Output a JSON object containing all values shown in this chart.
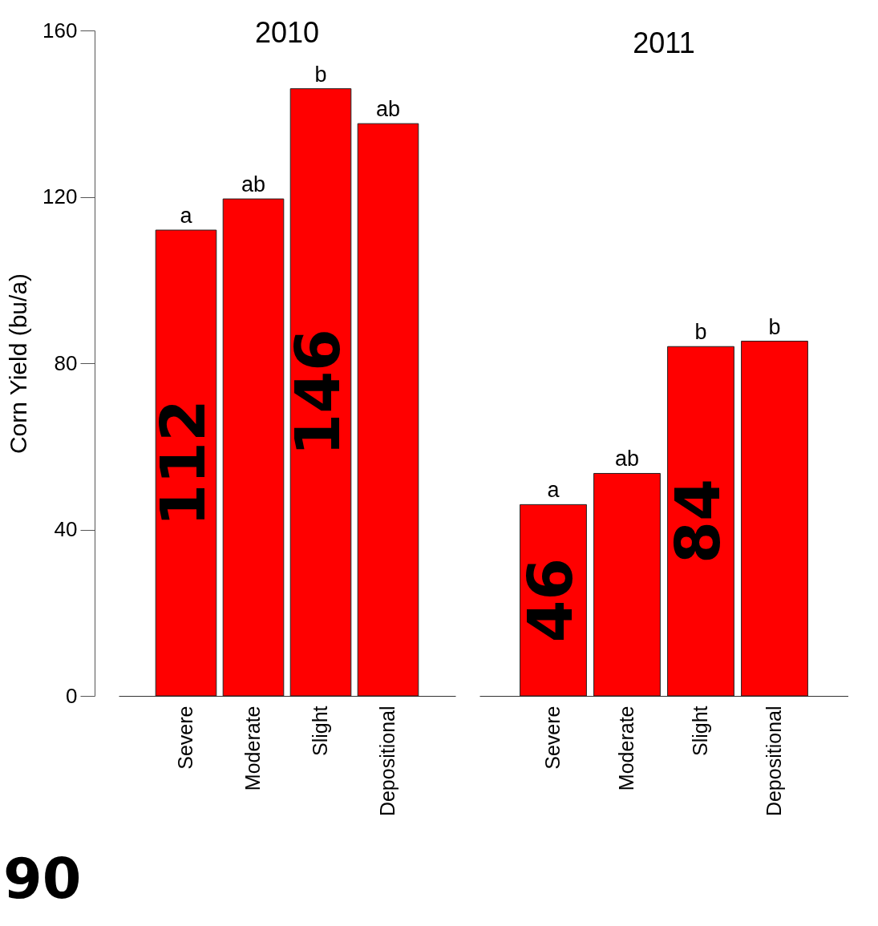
{
  "chart_data": [
    {
      "type": "bar",
      "title": "2010",
      "ylabel": "Corn Yield (bu/a)",
      "categories": [
        "Severe",
        "Moderate",
        "Slight",
        "Depositional"
      ],
      "values": [
        112,
        119.5,
        146,
        137.6
      ],
      "color": "#ff0000",
      "value_labels": [
        "112",
        null,
        "146",
        null
      ],
      "ylim": [
        0,
        160
      ],
      "yticks": [
        0,
        40,
        80,
        120,
        160
      ],
      "grid": false,
      "annotations": [
        {
          "text": "a",
          "x": "Severe",
          "y": 112
        },
        {
          "text": "ab",
          "x": "Moderate",
          "y": 119.5
        },
        {
          "text": "b",
          "x": "Slight",
          "y": 146
        },
        {
          "text": "ab",
          "x": "Depositional",
          "y": 137.6
        },
        "90"
      ]
    },
    {
      "type": "bar",
      "title": "2011",
      "categories": [
        "Severe",
        "Moderate",
        "Slight",
        "Depositional"
      ],
      "values": [
        46,
        53.5,
        84,
        85.3
      ],
      "color": "#ff0000",
      "value_labels": [
        "46",
        null,
        "84",
        null
      ],
      "ylim": [
        0,
        160
      ],
      "grid": false,
      "tick_labels": "x",
      "annotations": [
        {
          "text": "a",
          "x": "Severe",
          "y": 46
        },
        {
          "text": "ab",
          "x": "Moderate",
          "y": 53.5
        },
        {
          "text": "b",
          "x": "Slight",
          "y": 84
        },
        {
          "text": "b",
          "x": "Depositional",
          "y": 85.3
        }
      ]
    }
  ]
}
